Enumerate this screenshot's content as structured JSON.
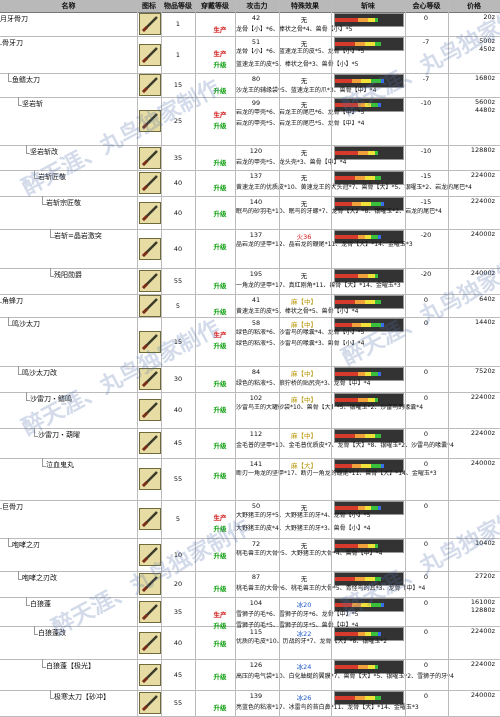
{
  "headers": [
    "名称",
    "图标",
    "物品等级",
    "穿戴等级",
    "攻击力",
    "特殊效果",
    "斩味",
    "会心等级",
    "价格"
  ],
  "watermark": "醉天涯、丸鸟独家制作",
  "colors": {
    "red_tag": "#d11414",
    "green_tag": "#14a114",
    "header_bg": "#b9b9b9"
  },
  "weapons": [
    {
      "name": "月牙骨刀",
      "rarity": "1",
      "wear": "1",
      "attack": "42",
      "effect": "无",
      "effect_color": "none",
      "crit": "0",
      "price": "20z",
      "mat_rows": [
        {
          "tag": "生产",
          "tag_color": "red",
          "mats": "龙骨【小】*6、棒状之骨*4、兽骨【小】*5"
        }
      ]
    },
    {
      "name": "骨牙刀",
      "rarity": "1",
      "wear": "1",
      "attack": "51",
      "effect": "无",
      "effect_color": "none",
      "crit": "-7",
      "price": "500z\n450z",
      "mat_rows": [
        {
          "tag": "生产",
          "tag_color": "red",
          "mats": "龙骨【小】*6、蓝速龙王的皮*5、龙骨【小】*5"
        },
        {
          "tag": "升级",
          "tag_color": "green",
          "mats": "蓝速龙王的皮*5、棒状之骨*3、兽骨【小】*5"
        }
      ]
    },
    {
      "name": "鱼鳍太刀",
      "rarity": "15",
      "wear": "",
      "attack": "80",
      "effect": "无",
      "effect_color": "none",
      "crit": "-7",
      "price": "1680z",
      "mat_rows": [
        {
          "tag": "升级",
          "tag_color": "green",
          "mats": "沙龙王的辅缘袋*5、蓝速龙王的爪*3、兽骨【中】*4"
        }
      ]
    },
    {
      "name": "坚岩斩",
      "rarity": "25",
      "wear": "",
      "attack": "99",
      "effect": "无",
      "effect_color": "none",
      "crit": "-10",
      "price": "5600z\n4480z",
      "mat_rows": [
        {
          "tag": "生产",
          "tag_color": "red",
          "mats": "岩龙的甲壳*6、岩龙王的尾巴*6、龙骨【中】*5"
        },
        {
          "tag": "升级",
          "tag_color": "green",
          "mats": "岩龙的甲壳*5、岩龙王的尾巴*5、龙骨【中】*4"
        }
      ]
    },
    {
      "name": "坚岩斩改",
      "rarity": "35",
      "wear": "",
      "attack": "120",
      "effect": "无",
      "effect_color": "none",
      "crit": "-10",
      "price": "12880z",
      "mat_rows": [
        {
          "tag": "升级",
          "tag_color": "green",
          "mats": "岩龙的甲壳*5、龙头壳*3、兽骨【中】*4"
        }
      ]
    },
    {
      "name": "岩斩匠敬",
      "rarity": "40",
      "wear": "",
      "attack": "137",
      "effect": "无",
      "effect_color": "none",
      "crit": "-15",
      "price": "22400z",
      "mat_rows": [
        {
          "tag": "升级",
          "tag_color": "green",
          "mats": "黄速龙王的优质皮*10、黄速龙王的大头冠*7、兽骨【大】*5、银曜玉*2、岩龙的尾巴*4"
        }
      ]
    },
    {
      "name": "岩斩宗匠敬",
      "rarity": "40",
      "wear": "",
      "attack": "140",
      "effect": "无",
      "effect_color": "none",
      "crit": "-15",
      "price": "22400z",
      "mat_rows": [
        {
          "tag": "升级",
          "tag_color": "green",
          "mats": "眠鸟的砂羽毛*10、眠鸟的牙螺*7、龙骨【大】*8、银曜玉*2、岩龙的尾巴*4"
        }
      ]
    },
    {
      "name": "岩斩=晶岩激突",
      "rarity": "40",
      "wear": "",
      "attack": "137",
      "effect": "火36",
      "effect_color": "red",
      "crit": "-20",
      "price": "24000z",
      "mat_rows": [
        {
          "tag": "升级",
          "tag_color": "green",
          "mats": "晶岩龙的坚甲*12、晶岩龙的鞭尾*11、龙骨【大】*14、金曜玉*3"
        }
      ]
    },
    {
      "name": "残阳勋爵",
      "rarity": "55",
      "wear": "",
      "attack": "195",
      "effect": "无",
      "effect_color": "none",
      "crit": "-20",
      "price": "24000z",
      "mat_rows": [
        {
          "tag": "升级",
          "tag_color": "green",
          "mats": "一角龙的坚甲*17、真红刚角*11、兽骨【大】*14、金曜玉*3"
        }
      ]
    },
    {
      "name": "角蜂刀",
      "rarity": "5",
      "wear": "",
      "attack": "41",
      "effect": "麻【中】",
      "effect_color": "yellow",
      "crit": "0",
      "price": "640z",
      "mat_rows": [
        {
          "tag": "升级",
          "tag_color": "green",
          "mats": "黄速龙王的皮*5、棒状之骨*5、兽骨【小】*4"
        }
      ]
    },
    {
      "name": "鸣沙太刀",
      "rarity": "15",
      "wear": "",
      "attack": "58",
      "effect": "麻【中】",
      "effect_color": "yellow",
      "crit": "0",
      "price": "1440z",
      "mat_rows": [
        {
          "tag": "生产",
          "tag_color": "red",
          "mats": "绿色的粘液*6、沙雷鸟的喙囊*4、龙骨【小】*5"
        },
        {
          "tag": "升级",
          "tag_color": "green",
          "mats": "绿色的粘液*5、沙雷鸟的喙囊*3、兽骨【小】*4"
        }
      ]
    },
    {
      "name": "鸣沙太刀改",
      "rarity": "30",
      "wear": "",
      "attack": "84",
      "effect": "麻【中】",
      "effect_color": "yellow",
      "crit": "0",
      "price": "7520z",
      "mat_rows": [
        {
          "tag": "升级",
          "tag_color": "green",
          "mats": "绿色的粘液*5、狼狞桥的贴尻壳*3、龙骨【中】*4"
        }
      ]
    },
    {
      "name": "沙雷刀・鳍鸣",
      "rarity": "40",
      "wear": "",
      "attack": "102",
      "effect": "麻【中】",
      "effect_color": "yellow",
      "crit": "0",
      "price": "22400z",
      "mat_rows": [
        {
          "tag": "升级",
          "tag_color": "green",
          "mats": "沙雷鸟王的大罐砂袋*10、兽骨【大】*5、银曜玉*2、沙雷鸟的喙囊*4"
        }
      ]
    },
    {
      "name": "沙雷刀・葫曜",
      "rarity": "45",
      "wear": "",
      "attack": "112",
      "effect": "麻【中】",
      "effect_color": "yellow",
      "crit": "0",
      "price": "22400z",
      "mat_rows": [
        {
          "tag": "升级",
          "tag_color": "green",
          "mats": "金毛普的坚甲*10、金毛普优质皮*7、龙骨【大】*8、银曜玉*2、沙雷鸟的喙囊*4"
        }
      ]
    },
    {
      "name": "泣血鬼丸",
      "rarity": "55",
      "wear": "",
      "attack": "141",
      "effect": "麻【大】",
      "effect_color": "yellow",
      "crit": "0",
      "price": "24000z",
      "mat_rows": [
        {
          "tag": "升级",
          "tag_color": "green",
          "mats": "断刃一角龙的坚甲*17、断刃一角龙的鞭尾*11、兽骨【大】*14、金曜玉*3"
        }
      ]
    },
    {
      "name": "巨骨刀",
      "rarity": "5",
      "wear": "",
      "attack": "50",
      "effect": "无",
      "effect_color": "none",
      "crit": "0",
      "price": "",
      "mat_rows": [
        {
          "tag": "生产",
          "tag_color": "red",
          "mats": "大野猪王的牙*5、大野猪王的牙*4、龙骨【小】*5"
        },
        {
          "tag": "升级",
          "tag_color": "green",
          "mats": "大野猪王的皮*4、大野猪王的牙*3、兽骨【小】*4"
        }
      ]
    },
    {
      "name": "咆哮之刃",
      "rarity": "10",
      "wear": "",
      "attack": "72",
      "effect": "无",
      "effect_color": "none",
      "crit": "0",
      "price": "1040z",
      "mat_rows": [
        {
          "tag": "升级",
          "tag_color": "green",
          "mats": "桃毛兽王的大骨*5、大野猪王的大骨*4、兽骨【中】*4"
        }
      ]
    },
    {
      "name": "咆哮之刃改",
      "rarity": "20",
      "wear": "",
      "attack": "87",
      "effect": "无",
      "effect_color": "none",
      "crit": "0",
      "price": "2720z",
      "mat_rows": [
        {
          "tag": "升级",
          "tag_color": "green",
          "mats": "桃毛兽王的大骨*6、桃毛兽王的大骨*5、青怪鸟的耳*3、龙骨【中】*4"
        }
      ]
    },
    {
      "name": "白狼蓬",
      "rarity": "35",
      "wear": "",
      "attack": "104",
      "effect": "冰20",
      "effect_color": "blue",
      "crit": "0",
      "price": "16100z\n12880z",
      "mat_rows": [
        {
          "tag": "生产",
          "tag_color": "red",
          "mats": "雪狮子的毛*6、雪狮子的牙*6、龙骨【中】*5"
        },
        {
          "tag": "升级",
          "tag_color": "green",
          "mats": "雪狮子的毛*5、雪狮子的牙*5、兽骨【中】*4"
        }
      ]
    },
    {
      "name": "白狼蓬改",
      "rarity": "40",
      "wear": "",
      "attack": "115",
      "effect": "冰22",
      "effect_color": "blue",
      "crit": "0",
      "price": "22400z",
      "mat_rows": [
        {
          "tag": "升级",
          "tag_color": "green",
          "mats": "优质的毛皮*10、历战的牙*7、龙骨【大】*8、银曜玉*2"
        }
      ]
    },
    {
      "name": "白狼蓬【极光】",
      "rarity": "45",
      "wear": "",
      "attack": "126",
      "effect": "冰24",
      "effect_color": "blue",
      "crit": "0",
      "price": "22400z",
      "mat_rows": [
        {
          "tag": "升级",
          "tag_color": "green",
          "mats": "高压的电气袋*10、白化蚰蜒的翼膜*7、兽骨【大】*5、银曜玉*2、雪狮子的牙*4"
        }
      ]
    },
    {
      "name": "极寒太刀【砂冲】",
      "rarity": "55",
      "wear": "",
      "attack": "139",
      "effect": "冰26",
      "effect_color": "blue",
      "crit": "0",
      "price": "24000z",
      "mat_rows": [
        {
          "tag": "升级",
          "tag_color": "green",
          "mats": "亮蓝色的粘液*17、冰雷鸟的苔白鼻*11、龙骨【大】*14、金曜玉*3"
        }
      ]
    }
  ]
}
